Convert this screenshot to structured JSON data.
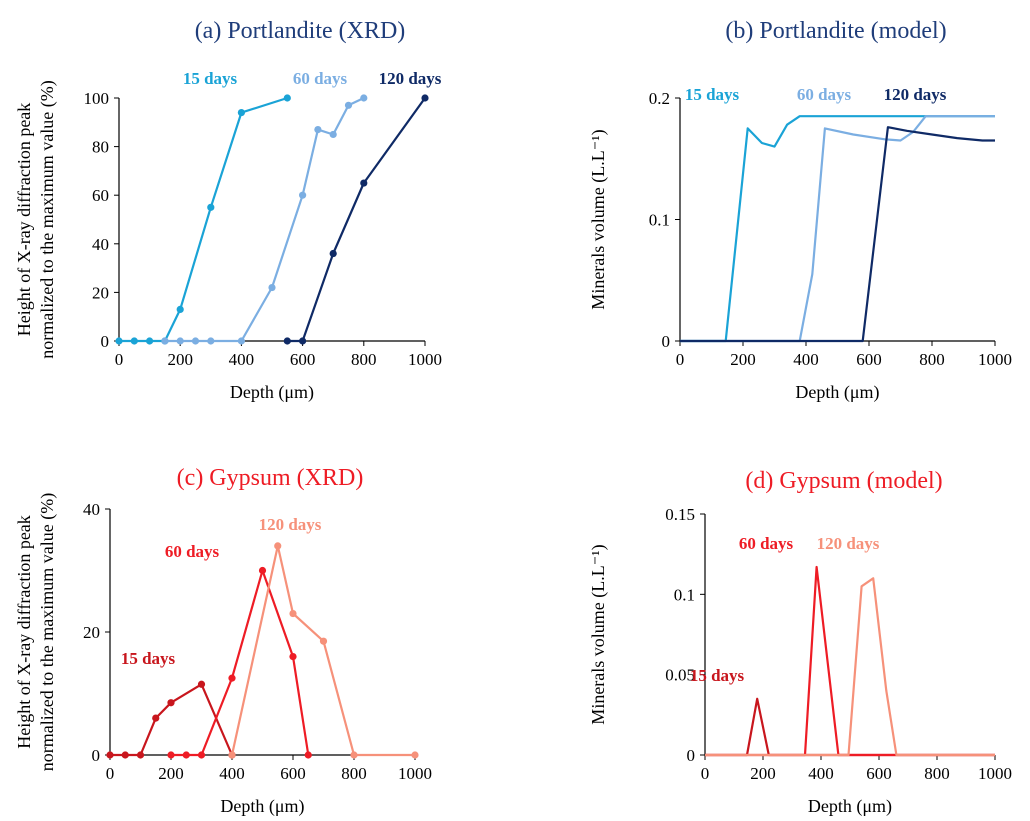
{
  "colors": {
    "axis": "#000000",
    "blue_15": "#1aa3d6",
    "blue_60": "#7baee2",
    "blue_120": "#0f2a66",
    "red_15": "#c8161d",
    "red_60": "#ee1c25",
    "red_120": "#f6917a",
    "title_blue": "#1f3d7a",
    "title_red": "#ee1c25"
  },
  "chart_data": [
    {
      "id": "a",
      "type": "line",
      "title": "(a) Portlandite (XRD)",
      "xlabel": "Depth (μm)",
      "ylabel": [
        "Height of X-ray diffraction peak",
        "normalized to the maximum value (%)"
      ],
      "xlim": [
        0,
        1000
      ],
      "ylim": [
        0,
        100
      ],
      "xticks": [
        0,
        200,
        400,
        600,
        800,
        1000
      ],
      "yticks": [
        0,
        20,
        40,
        60,
        80,
        100
      ],
      "markers": true,
      "series": [
        {
          "name": "15 days",
          "color": "#1aa3d6",
          "x": [
            0,
            50,
            100,
            150,
            200,
            300,
            400,
            550
          ],
          "y": [
            0,
            0,
            0,
            0,
            13,
            55,
            94,
            100
          ]
        },
        {
          "name": "60 days",
          "color": "#7baee2",
          "x": [
            150,
            200,
            250,
            300,
            400,
            500,
            600,
            650,
            700,
            750,
            800
          ],
          "y": [
            0,
            0,
            0,
            0,
            0,
            22,
            60,
            87,
            85,
            97,
            100
          ]
        },
        {
          "name": "120 days",
          "color": "#0f2a66",
          "x": [
            550,
            600,
            700,
            800,
            1000
          ],
          "y": [
            0,
            0,
            36,
            65,
            100
          ]
        }
      ]
    },
    {
      "id": "b",
      "type": "line",
      "title": "(b) Portlandite (model)",
      "xlabel": "Depth (μm)",
      "ylabel": [
        "Minerals volume (L.L⁻¹)"
      ],
      "xlim": [
        0,
        1000
      ],
      "ylim": [
        0,
        0.2
      ],
      "xticks": [
        0,
        200,
        400,
        600,
        800,
        1000
      ],
      "yticks": [
        0,
        0.1,
        0.2
      ],
      "markers": false,
      "series": [
        {
          "name": "15 days",
          "color": "#1aa3d6",
          "x": [
            0,
            145,
            215,
            260,
            300,
            340,
            380,
            430,
            1000
          ],
          "y": [
            0,
            0,
            0.175,
            0.163,
            0.16,
            0.178,
            0.185,
            0.185,
            0.185
          ]
        },
        {
          "name": "60 days",
          "color": "#7baee2",
          "x": [
            0,
            380,
            420,
            460,
            550,
            650,
            700,
            740,
            780,
            1000
          ],
          "y": [
            0,
            0,
            0.055,
            0.175,
            0.17,
            0.166,
            0.165,
            0.172,
            0.185,
            0.185
          ]
        },
        {
          "name": "120 days",
          "color": "#0f2a66",
          "x": [
            0,
            580,
            660,
            720,
            800,
            880,
            960,
            1000
          ],
          "y": [
            0,
            0,
            0.176,
            0.173,
            0.17,
            0.167,
            0.165,
            0.165
          ]
        }
      ]
    },
    {
      "id": "c",
      "type": "line",
      "title": "(c) Gypsum (XRD)",
      "xlabel": "Depth (μm)",
      "ylabel": [
        "Height of X-ray diffraction peak",
        "normalized to the maximum value (%)"
      ],
      "xlim": [
        0,
        1000
      ],
      "ylim": [
        0,
        40
      ],
      "xticks": [
        0,
        200,
        400,
        600,
        800,
        1000
      ],
      "yticks": [
        0,
        20,
        40
      ],
      "markers": true,
      "series": [
        {
          "name": "15 days",
          "color": "#c8161d",
          "x": [
            0,
            50,
            100,
            150,
            200,
            300,
            400
          ],
          "y": [
            0,
            0,
            0,
            6,
            8.5,
            11.5,
            0
          ]
        },
        {
          "name": "60 days",
          "color": "#ee1c25",
          "x": [
            200,
            250,
            300,
            400,
            500,
            600,
            650
          ],
          "y": [
            0,
            0,
            0,
            12.5,
            30,
            16,
            0
          ]
        },
        {
          "name": "120 days",
          "color": "#f6917a",
          "x": [
            400,
            550,
            600,
            700,
            800,
            1000
          ],
          "y": [
            0,
            34,
            23,
            18.5,
            0,
            0
          ]
        }
      ]
    },
    {
      "id": "d",
      "type": "line",
      "title": "(d) Gypsum (model)",
      "xlabel": "Depth (μm)",
      "ylabel": [
        "Minerals volume (L.L⁻¹)"
      ],
      "xlim": [
        0,
        1000
      ],
      "ylim": [
        0,
        0.15
      ],
      "xticks": [
        0,
        200,
        400,
        600,
        800,
        1000
      ],
      "yticks": [
        0,
        0.05,
        0.1,
        0.15
      ],
      "markers": false,
      "series": [
        {
          "name": "15 days",
          "color": "#c8161d",
          "x": [
            0,
            145,
            180,
            220,
            1000
          ],
          "y": [
            0,
            0,
            0.035,
            0,
            0
          ]
        },
        {
          "name": "60 days",
          "color": "#ee1c25",
          "x": [
            0,
            345,
            385,
            460,
            1000
          ],
          "y": [
            0,
            0,
            0.117,
            0,
            0
          ]
        },
        {
          "name": "120 days",
          "color": "#f6917a",
          "x": [
            0,
            495,
            540,
            580,
            625,
            660,
            1000
          ],
          "y": [
            0,
            0,
            0.105,
            0.11,
            0.04,
            0,
            0
          ]
        }
      ]
    }
  ]
}
